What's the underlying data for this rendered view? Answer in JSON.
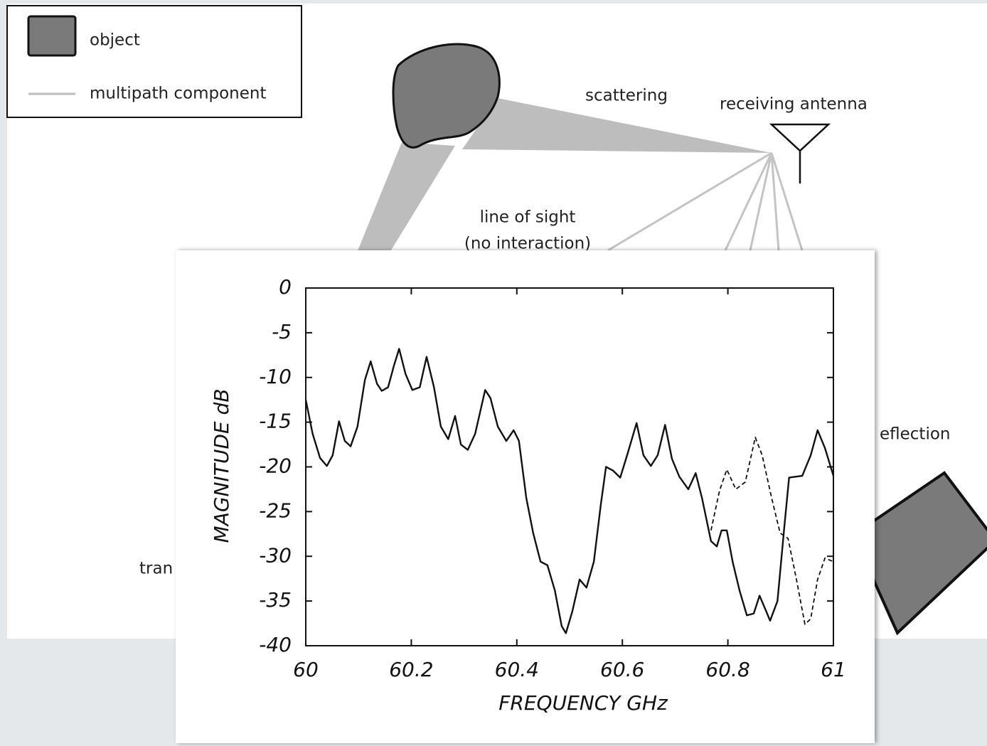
{
  "diagram": {
    "legend": {
      "items": [
        "object",
        "multipath component"
      ]
    },
    "labels": {
      "scattering": "scattering",
      "receiving_antenna": "receiving antenna",
      "line_of_sight": [
        "line of sight",
        "(no interaction)"
      ],
      "reflection": "eflection",
      "transmitting": "tran"
    }
  },
  "chart_data": {
    "type": "line",
    "x_label": "FREQUENCY GHz",
    "y_label": "MAGNITUDE dB",
    "xlim": [
      60,
      61
    ],
    "ylim": [
      -40,
      0
    ],
    "xticks": [
      60,
      60.2,
      60.4,
      60.6,
      60.8,
      61
    ],
    "yticks": [
      0,
      -5,
      -10,
      -15,
      -20,
      -25,
      -30,
      -35,
      -40
    ],
    "series": [
      {
        "color": "#111111",
        "line_style": "solid",
        "x": [
          60.0,
          60.013,
          60.027,
          60.04,
          60.051,
          60.063,
          60.074,
          60.085,
          60.098,
          60.112,
          60.123,
          60.135,
          60.144,
          60.156,
          60.167,
          60.177,
          60.189,
          60.202,
          60.216,
          60.229,
          60.243,
          60.256,
          60.27,
          60.283,
          60.294,
          60.307,
          60.321,
          60.34,
          60.35,
          60.364,
          60.38,
          60.394,
          60.404,
          60.418,
          60.431,
          60.445,
          60.458,
          60.472,
          60.485,
          60.493,
          60.505,
          60.519,
          60.532,
          60.546,
          60.559,
          60.569,
          60.582,
          60.596,
          60.609,
          60.627,
          60.64,
          60.654,
          60.667,
          60.681,
          60.694,
          60.708,
          60.725,
          60.739,
          60.751,
          60.768,
          60.779,
          60.788,
          60.798,
          60.809,
          60.822,
          60.836,
          60.849,
          60.86,
          60.873,
          60.88,
          60.894,
          60.907,
          60.916,
          60.941,
          60.957,
          60.97,
          60.984,
          61.0
        ],
        "values": [
          -12.5,
          -16.3,
          -19,
          -19.9,
          -18.7,
          -14.9,
          -17.1,
          -17.7,
          -15.5,
          -10.3,
          -8.2,
          -10.7,
          -11.5,
          -11.1,
          -8.7,
          -6.8,
          -9.6,
          -11.4,
          -11.1,
          -7.7,
          -11.1,
          -15.5,
          -16.9,
          -14.3,
          -17.5,
          -18.1,
          -16.3,
          -11.4,
          -12.3,
          -15.5,
          -17.1,
          -15.9,
          -17.1,
          -23.5,
          -27.4,
          -30.6,
          -31,
          -33.8,
          -37.8,
          -38.6,
          -36.2,
          -32.6,
          -33.5,
          -30.6,
          -24.3,
          -20,
          -20.4,
          -21.2,
          -18.7,
          -15.1,
          -18.7,
          -19.9,
          -18.7,
          -15.3,
          -19.1,
          -21.1,
          -22.5,
          -20.7,
          -23.5,
          -28.3,
          -28.9,
          -27.1,
          -27.1,
          -30.6,
          -33.8,
          -36.6,
          -36.4,
          -34.4,
          -36.2,
          -37.2,
          -35,
          -26.7,
          -21.2,
          -21,
          -18.7,
          -15.9,
          -17.9,
          -21
        ]
      },
      {
        "color": "#111111",
        "line_style": "dashed",
        "x": [
          60.768,
          60.784,
          60.798,
          60.815,
          60.833,
          60.852,
          60.865,
          60.883,
          60.899,
          60.914,
          60.93,
          60.946,
          60.957,
          60.97,
          60.984,
          61.0
        ],
        "values": [
          -27.1,
          -22.7,
          -20.3,
          -22.5,
          -21.7,
          -16.7,
          -18.7,
          -23.5,
          -27.4,
          -28,
          -32.6,
          -37.6,
          -37,
          -32.6,
          -30.2,
          -30.6
        ]
      }
    ]
  }
}
